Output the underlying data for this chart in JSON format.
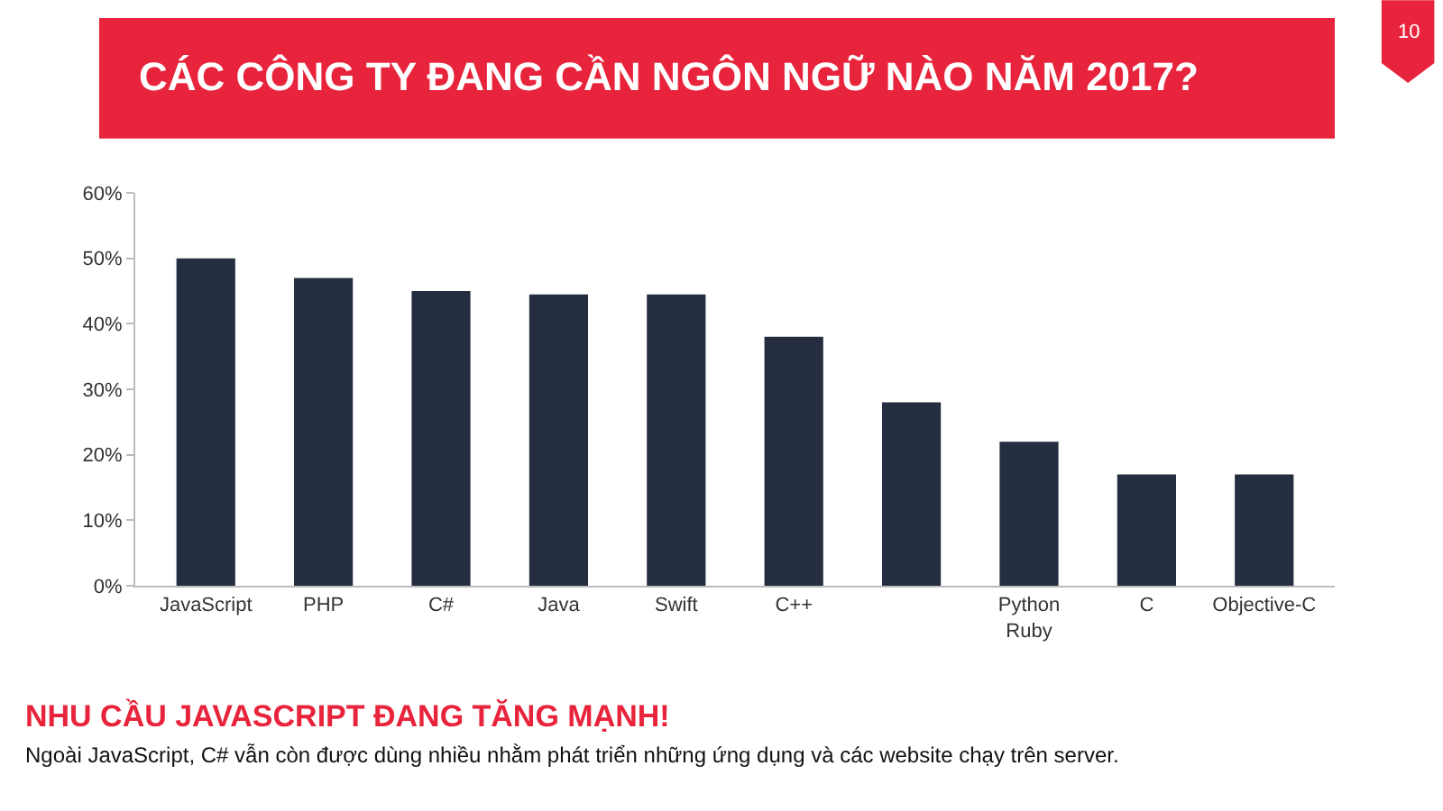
{
  "chart_data": {
    "type": "bar",
    "title": "CÁC CÔNG TY ĐANG CẦN NGÔN NGỮ NÀO NĂM 2017?",
    "subtitle": "NHU CẦU JAVASCRIPT ĐANG TĂNG MẠNH!",
    "annotations": [
      "10",
      "Ngoài JavaScript, C# vẫn còn được dùng nhiều nhằm phát triển những ứng dụng và các website chạy trên server."
    ],
    "categories": [
      "JavaScript",
      "PHP",
      "C#",
      "Java",
      "Swift",
      "C++",
      null,
      "Python Ruby",
      "C",
      "Objective-C"
    ],
    "values": [
      50,
      47,
      45,
      44.5,
      44.5,
      38,
      28,
      22,
      17,
      17
    ],
    "color": "#252d40",
    "ylim": [
      0,
      60
    ],
    "yticks": [
      {
        "value": 0,
        "label": "0%"
      },
      {
        "value": 10,
        "label": "10%"
      },
      {
        "value": 20,
        "label": "20%"
      },
      {
        "value": 30,
        "label": "30%"
      },
      {
        "value": 40,
        "label": "40%"
      },
      {
        "value": 50,
        "label": "50%"
      },
      {
        "value": 60,
        "label": "60%"
      }
    ],
    "grid": false
  }
}
